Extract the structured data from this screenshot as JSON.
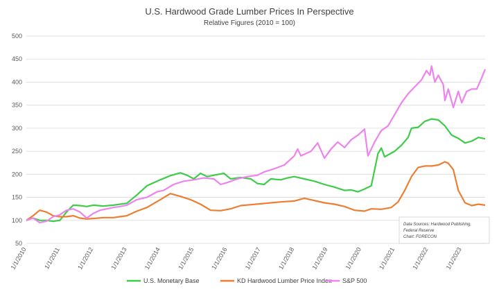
{
  "chart_data": {
    "type": "line",
    "title": "U.S. Hardwood Grade Lumber Prices In Perspective",
    "subtitle": "Relative Figures (2010 = 100)",
    "xlabel": "",
    "ylabel": "",
    "xlim": [
      2010,
      2023.7
    ],
    "ylim": [
      50,
      500
    ],
    "yticks": [
      50,
      100,
      150,
      200,
      250,
      300,
      350,
      400,
      450,
      500
    ],
    "xticks": [
      {
        "x": 2010,
        "label": "1/1/2010"
      },
      {
        "x": 2011,
        "label": "1/1/2011"
      },
      {
        "x": 2012,
        "label": "1/1/2012"
      },
      {
        "x": 2013,
        "label": "1/1/2013"
      },
      {
        "x": 2014,
        "label": "1/1/2014"
      },
      {
        "x": 2015,
        "label": "1/1/2015"
      },
      {
        "x": 2016,
        "label": "1/1/2016"
      },
      {
        "x": 2017,
        "label": "1/1/2017"
      },
      {
        "x": 2018,
        "label": "1/1/2018"
      },
      {
        "x": 2019,
        "label": "1/1/2019"
      },
      {
        "x": 2020,
        "label": "1/1/2020"
      },
      {
        "x": 2021,
        "label": "1/1/2021"
      },
      {
        "x": 2022,
        "label": "1/1/2022"
      },
      {
        "x": 2023,
        "label": "1/1/2023"
      }
    ],
    "grid": true,
    "legend_position": "bottom",
    "note": [
      "Data Sources: Hardwood Publishing,",
      "Federal Reserve",
      "Chart: FORECON"
    ],
    "series": [
      {
        "name": "U.S. Monetary Base",
        "color": "#3dcc48",
        "points": [
          [
            2010,
            100
          ],
          [
            2010.2,
            105
          ],
          [
            2010.4,
            100
          ],
          [
            2010.6,
            100
          ],
          [
            2010.8,
            98
          ],
          [
            2011,
            100
          ],
          [
            2011.2,
            118
          ],
          [
            2011.4,
            133
          ],
          [
            2011.6,
            132
          ],
          [
            2011.8,
            130
          ],
          [
            2012,
            133
          ],
          [
            2012.3,
            131
          ],
          [
            2012.6,
            133
          ],
          [
            2013,
            137
          ],
          [
            2013.3,
            155
          ],
          [
            2013.6,
            175
          ],
          [
            2014,
            188
          ],
          [
            2014.3,
            197
          ],
          [
            2014.6,
            203
          ],
          [
            2014.8,
            198
          ],
          [
            2015,
            190
          ],
          [
            2015.2,
            202
          ],
          [
            2015.4,
            195
          ],
          [
            2015.6,
            198
          ],
          [
            2015.9,
            202
          ],
          [
            2016.1,
            190
          ],
          [
            2016.4,
            193
          ],
          [
            2016.7,
            190
          ],
          [
            2016.9,
            180
          ],
          [
            2017.1,
            178
          ],
          [
            2017.3,
            190
          ],
          [
            2017.6,
            188
          ],
          [
            2017.8,
            192
          ],
          [
            2018,
            195
          ],
          [
            2018.3,
            190
          ],
          [
            2018.6,
            185
          ],
          [
            2018.9,
            178
          ],
          [
            2019.2,
            172
          ],
          [
            2019.5,
            165
          ],
          [
            2019.7,
            166
          ],
          [
            2019.9,
            162
          ],
          [
            2020.1,
            168
          ],
          [
            2020.3,
            175
          ],
          [
            2020.5,
            245
          ],
          [
            2020.6,
            257
          ],
          [
            2020.7,
            238
          ],
          [
            2021,
            250
          ],
          [
            2021.2,
            263
          ],
          [
            2021.4,
            280
          ],
          [
            2021.5,
            300
          ],
          [
            2021.7,
            302
          ],
          [
            2021.9,
            315
          ],
          [
            2022.1,
            320
          ],
          [
            2022.3,
            318
          ],
          [
            2022.5,
            305
          ],
          [
            2022.7,
            285
          ],
          [
            2022.9,
            278
          ],
          [
            2023.1,
            268
          ],
          [
            2023.3,
            272
          ],
          [
            2023.5,
            280
          ],
          [
            2023.7,
            277
          ]
        ]
      },
      {
        "name": "KD Hardwood Lumber Price Index",
        "color": "#ed7d31",
        "points": [
          [
            2010,
            100
          ],
          [
            2010.2,
            110
          ],
          [
            2010.4,
            122
          ],
          [
            2010.6,
            118
          ],
          [
            2010.8,
            110
          ],
          [
            2011,
            108
          ],
          [
            2011.2,
            108
          ],
          [
            2011.4,
            110
          ],
          [
            2011.6,
            105
          ],
          [
            2011.8,
            103
          ],
          [
            2012,
            104
          ],
          [
            2012.3,
            106
          ],
          [
            2012.6,
            106
          ],
          [
            2013,
            110
          ],
          [
            2013.3,
            120
          ],
          [
            2013.6,
            128
          ],
          [
            2014,
            145
          ],
          [
            2014.3,
            158
          ],
          [
            2014.6,
            152
          ],
          [
            2014.9,
            145
          ],
          [
            2015.2,
            135
          ],
          [
            2015.5,
            122
          ],
          [
            2015.8,
            121
          ],
          [
            2016.1,
            125
          ],
          [
            2016.4,
            132
          ],
          [
            2016.7,
            134
          ],
          [
            2017,
            136
          ],
          [
            2017.3,
            138
          ],
          [
            2017.6,
            140
          ],
          [
            2018,
            142
          ],
          [
            2018.3,
            148
          ],
          [
            2018.6,
            143
          ],
          [
            2018.9,
            138
          ],
          [
            2019.2,
            135
          ],
          [
            2019.5,
            130
          ],
          [
            2019.8,
            122
          ],
          [
            2020.1,
            120
          ],
          [
            2020.3,
            125
          ],
          [
            2020.6,
            124
          ],
          [
            2020.9,
            128
          ],
          [
            2021.1,
            140
          ],
          [
            2021.3,
            165
          ],
          [
            2021.5,
            195
          ],
          [
            2021.7,
            215
          ],
          [
            2021.9,
            218
          ],
          [
            2022.1,
            218
          ],
          [
            2022.3,
            220
          ],
          [
            2022.5,
            227
          ],
          [
            2022.6,
            224
          ],
          [
            2022.75,
            210
          ],
          [
            2022.9,
            165
          ],
          [
            2023.1,
            138
          ],
          [
            2023.3,
            132
          ],
          [
            2023.5,
            135
          ],
          [
            2023.7,
            133
          ]
        ]
      },
      {
        "name": "S&P 500",
        "color": "#ee82ee",
        "points": [
          [
            2010,
            100
          ],
          [
            2010.2,
            105
          ],
          [
            2010.4,
            95
          ],
          [
            2010.6,
            98
          ],
          [
            2010.8,
            108
          ],
          [
            2011,
            112
          ],
          [
            2011.2,
            122
          ],
          [
            2011.4,
            125
          ],
          [
            2011.6,
            118
          ],
          [
            2011.8,
            105
          ],
          [
            2012,
            115
          ],
          [
            2012.2,
            122
          ],
          [
            2012.4,
            125
          ],
          [
            2012.6,
            128
          ],
          [
            2012.8,
            130
          ],
          [
            2013,
            133
          ],
          [
            2013.3,
            145
          ],
          [
            2013.6,
            150
          ],
          [
            2013.9,
            162
          ],
          [
            2014.1,
            165
          ],
          [
            2014.4,
            178
          ],
          [
            2014.7,
            185
          ],
          [
            2015,
            188
          ],
          [
            2015.3,
            192
          ],
          [
            2015.6,
            190
          ],
          [
            2015.8,
            178
          ],
          [
            2016,
            182
          ],
          [
            2016.3,
            190
          ],
          [
            2016.6,
            195
          ],
          [
            2016.9,
            198
          ],
          [
            2017.1,
            205
          ],
          [
            2017.4,
            212
          ],
          [
            2017.7,
            220
          ],
          [
            2018,
            240
          ],
          [
            2018.1,
            255
          ],
          [
            2018.2,
            240
          ],
          [
            2018.5,
            250
          ],
          [
            2018.7,
            268
          ],
          [
            2018.9,
            235
          ],
          [
            2019.1,
            255
          ],
          [
            2019.3,
            270
          ],
          [
            2019.5,
            258
          ],
          [
            2019.7,
            275
          ],
          [
            2019.9,
            285
          ],
          [
            2020.1,
            298
          ],
          [
            2020.2,
            240
          ],
          [
            2020.4,
            270
          ],
          [
            2020.6,
            295
          ],
          [
            2020.8,
            305
          ],
          [
            2021,
            330
          ],
          [
            2021.2,
            355
          ],
          [
            2021.4,
            375
          ],
          [
            2021.6,
            390
          ],
          [
            2021.8,
            405
          ],
          [
            2021.95,
            425
          ],
          [
            2022.05,
            415
          ],
          [
            2022.1,
            435
          ],
          [
            2022.2,
            400
          ],
          [
            2022.3,
            415
          ],
          [
            2022.45,
            395
          ],
          [
            2022.5,
            360
          ],
          [
            2022.6,
            385
          ],
          [
            2022.75,
            345
          ],
          [
            2022.9,
            380
          ],
          [
            2023,
            355
          ],
          [
            2023.15,
            380
          ],
          [
            2023.3,
            385
          ],
          [
            2023.45,
            385
          ],
          [
            2023.6,
            410
          ],
          [
            2023.7,
            428
          ]
        ]
      }
    ]
  }
}
